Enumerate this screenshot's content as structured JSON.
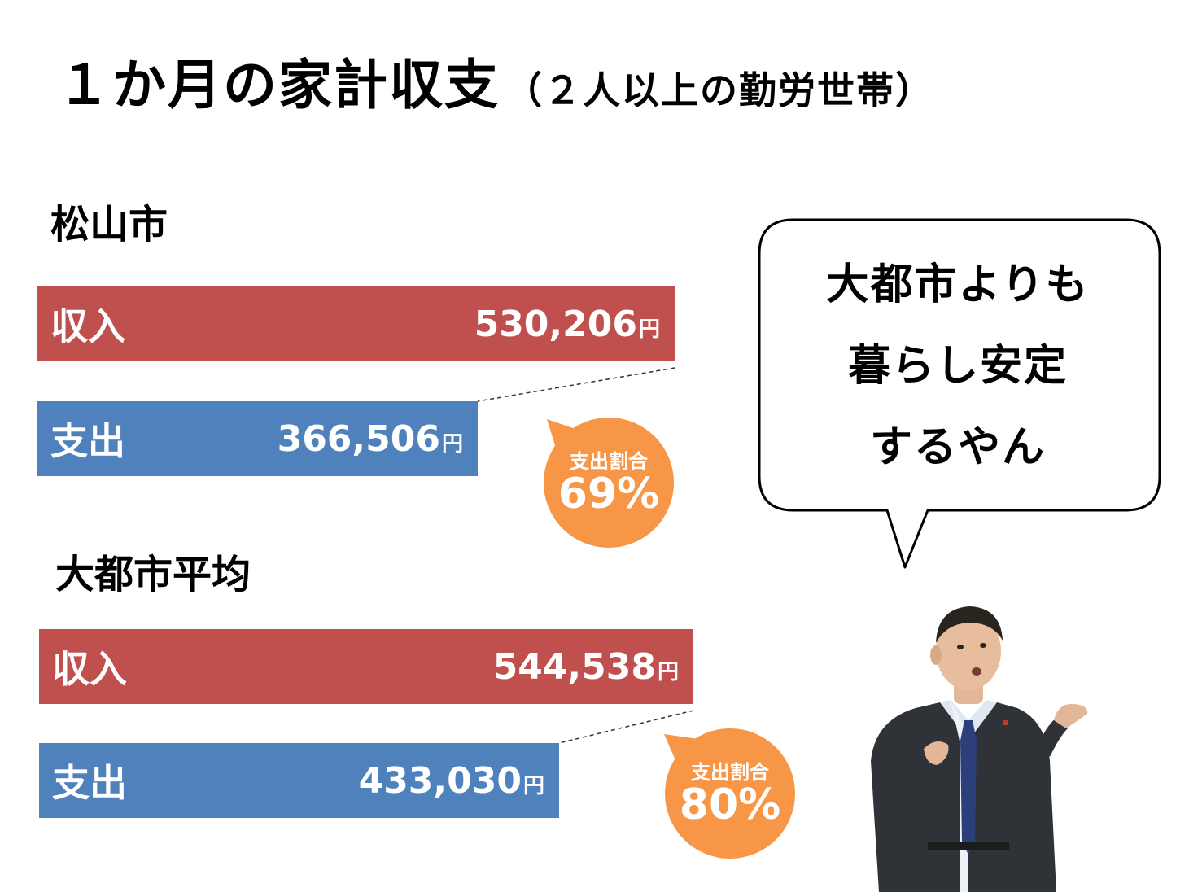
{
  "title": {
    "main": "１か月の家計収支",
    "sub": "（２人以上の勤労世帯）"
  },
  "chart_data": {
    "type": "bar",
    "unit": "円",
    "groups": [
      {
        "name": "松山市",
        "bars": [
          {
            "label": "収入",
            "value": 530206,
            "display": "530,206"
          },
          {
            "label": "支出",
            "value": 366506,
            "display": "366,506"
          }
        ],
        "ratio_label": "支出割合",
        "ratio_value": "69%"
      },
      {
        "name": "大都市平均",
        "bars": [
          {
            "label": "収入",
            "value": 544538,
            "display": "544,538"
          },
          {
            "label": "支出",
            "value": 433030,
            "display": "433,030"
          }
        ],
        "ratio_label": "支出割合",
        "ratio_value": "80%"
      }
    ]
  },
  "speech": {
    "lines": [
      "大都市よりも",
      "暮らし安定",
      "するやん"
    ]
  },
  "colors": {
    "income": "#c0504d",
    "expense": "#4f81bd",
    "badge": "#f79646"
  },
  "icons": {
    "person": "businessman-illustration"
  }
}
